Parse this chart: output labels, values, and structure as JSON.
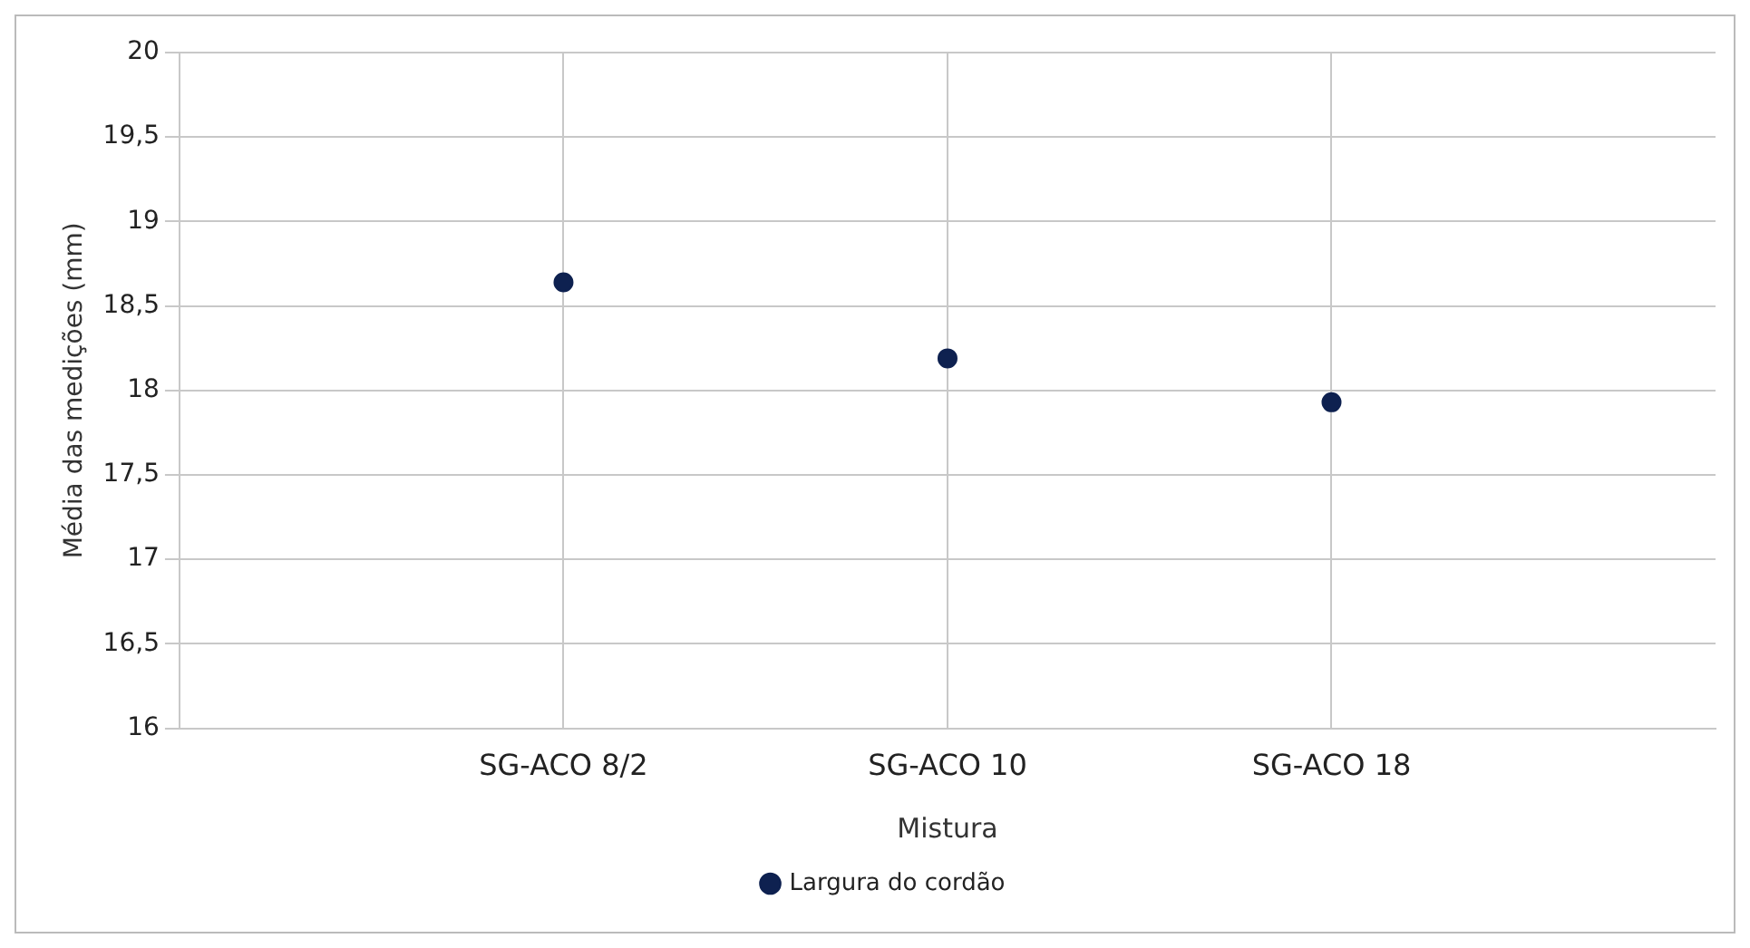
{
  "chart_data": {
    "type": "scatter",
    "xlabel": "Mistura",
    "ylabel": "Média das medições (mm)",
    "categories": [
      "SG-ACO 8/2",
      "SG-ACO 10",
      "SG-ACO 18"
    ],
    "series": [
      {
        "name": "Largura do cordão",
        "color": "#0e2150",
        "values": [
          18.64,
          18.19,
          17.93
        ]
      }
    ],
    "ylim": [
      16,
      20
    ],
    "yticks": [
      16,
      {
        "value": 16.5,
        "label": "16,5"
      },
      17,
      {
        "value": 17.5,
        "label": "17,5"
      },
      18,
      {
        "value": 18.5,
        "label": "18,5"
      },
      19,
      {
        "value": 19.5,
        "label": "19,5"
      },
      20
    ],
    "grid": true,
    "legend": "bottom",
    "marker": "circle"
  }
}
